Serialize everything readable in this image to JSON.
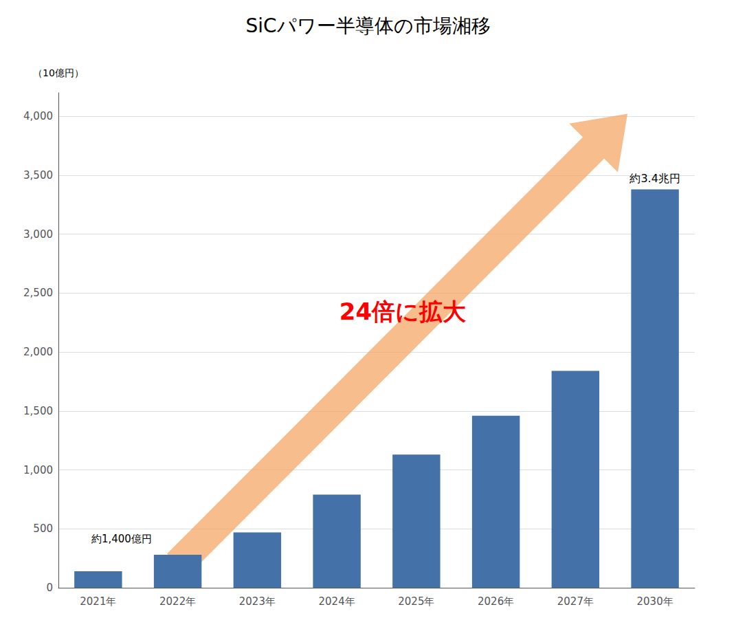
{
  "chart_data": {
    "type": "bar",
    "title": "SiCパワー半導体の市場湘移",
    "ylabel": "（10億円）",
    "categories": [
      "2021年",
      "2022年",
      "2023年",
      "2024年",
      "2025年",
      "2026年",
      "2027年",
      "2030年"
    ],
    "values": [
      140,
      280,
      470,
      790,
      1130,
      1460,
      1840,
      3380
    ],
    "color": "#4472a8",
    "ylim": [
      0,
      4200
    ],
    "yticks": [
      0,
      500,
      {
        "value": 1000,
        "label": "1,000"
      },
      {
        "value": 1500,
        "label": "1,500"
      },
      {
        "value": 2000,
        "label": "2,000"
      },
      {
        "value": 2500,
        "label": "2,500"
      },
      {
        "value": 3000,
        "label": "3,000"
      },
      {
        "value": 3500,
        "label": "3,500"
      },
      {
        "value": 4000,
        "label": "4,000"
      }
    ],
    "grid": true,
    "annotations": [
      {
        "text": "約1,400億円"
      },
      {
        "text": "24倍に拡大",
        "color": "red"
      },
      {
        "text": "約3.4兆円"
      }
    ]
  }
}
